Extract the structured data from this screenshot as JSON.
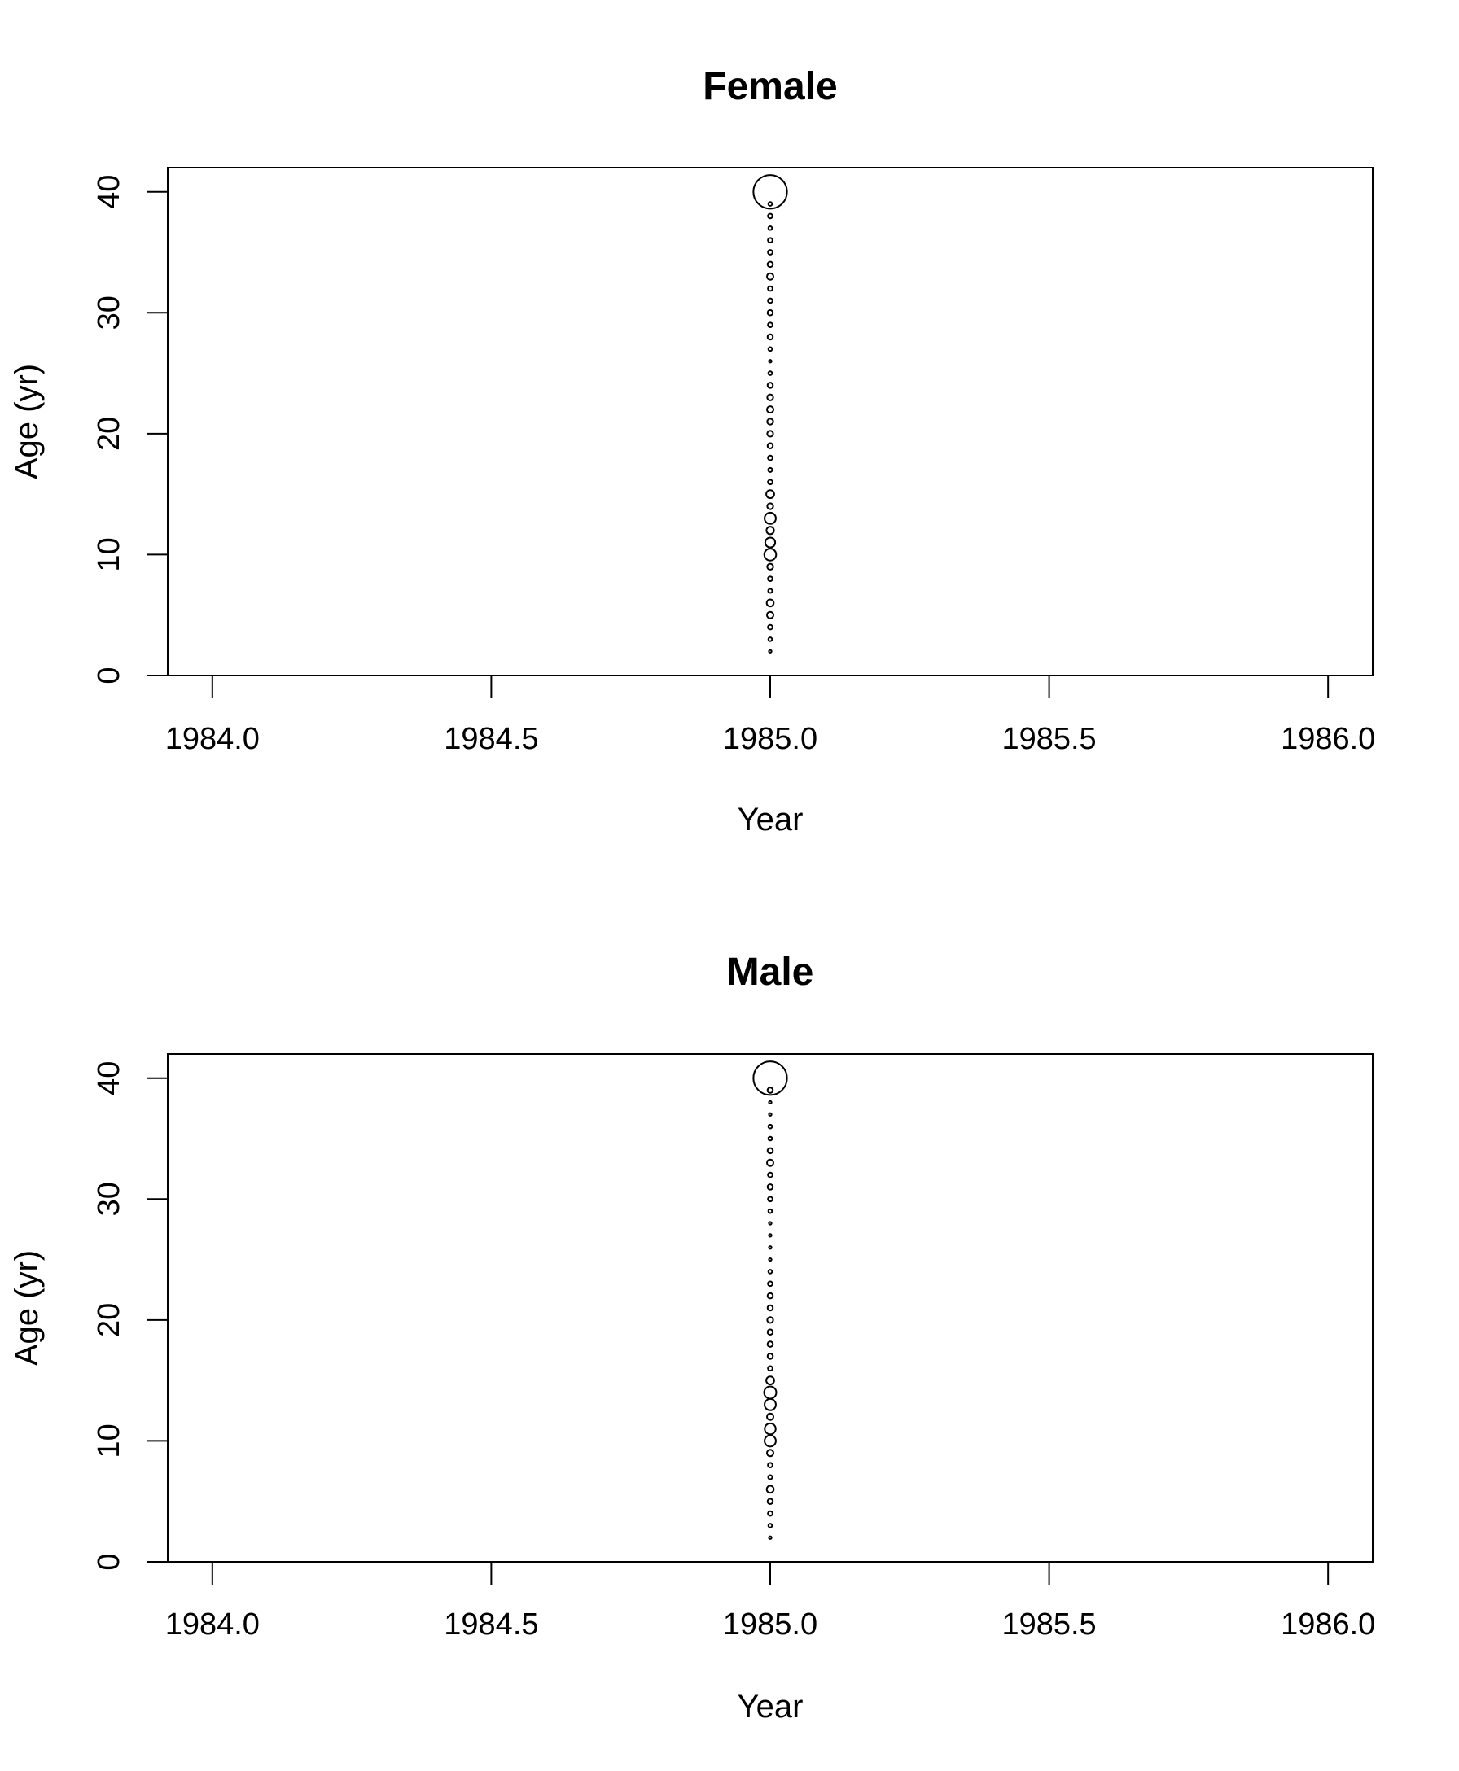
{
  "chart_data": [
    {
      "type": "scatter",
      "title": "Female",
      "xlabel": "Year",
      "ylabel": "Age (yr)",
      "xlim": [
        1983.92,
        1986.08
      ],
      "ylim": [
        0,
        42
      ],
      "xticks": [
        1984.0,
        1984.5,
        1985.0,
        1985.5,
        1986.0
      ],
      "xtick_labels": [
        "1984.0",
        "1984.5",
        "1985.0",
        "1985.5",
        "1986.0"
      ],
      "yticks": [
        0,
        10,
        20,
        30,
        40
      ],
      "ytick_labels": [
        "0",
        "10",
        "20",
        "30",
        "40"
      ],
      "grid": false,
      "series": [
        {
          "x": [
            1985,
            1985,
            1985,
            1985,
            1985,
            1985,
            1985,
            1985,
            1985,
            1985,
            1985,
            1985,
            1985,
            1985,
            1985,
            1985,
            1985,
            1985,
            1985,
            1985,
            1985,
            1985,
            1985,
            1985,
            1985,
            1985,
            1985,
            1985,
            1985,
            1985,
            1985,
            1985,
            1985,
            1985,
            1985,
            1985,
            1985,
            1985,
            1985
          ],
          "y": [
            2,
            3,
            4,
            5,
            6,
            7,
            8,
            9,
            10,
            11,
            12,
            13,
            14,
            15,
            16,
            17,
            18,
            19,
            20,
            21,
            22,
            23,
            24,
            25,
            26,
            27,
            28,
            29,
            30,
            31,
            32,
            33,
            34,
            35,
            36,
            37,
            38,
            39,
            40
          ],
          "size": [
            0.05,
            0.1,
            0.15,
            0.3,
            0.35,
            0.12,
            0.15,
            0.25,
            1.0,
            0.7,
            0.4,
            0.9,
            0.25,
            0.45,
            0.15,
            0.12,
            0.15,
            0.2,
            0.25,
            0.25,
            0.3,
            0.25,
            0.2,
            0.1,
            0.05,
            0.1,
            0.2,
            0.15,
            0.2,
            0.15,
            0.15,
            0.3,
            0.2,
            0.15,
            0.15,
            0.1,
            0.15,
            0.1,
            8.0
          ]
        }
      ]
    },
    {
      "type": "scatter",
      "title": "Male",
      "xlabel": "Year",
      "ylabel": "Age (yr)",
      "xlim": [
        1983.92,
        1986.08
      ],
      "ylim": [
        0,
        42
      ],
      "xticks": [
        1984.0,
        1984.5,
        1985.0,
        1985.5,
        1986.0
      ],
      "xtick_labels": [
        "1984.0",
        "1984.5",
        "1985.0",
        "1985.5",
        "1986.0"
      ],
      "yticks": [
        0,
        10,
        20,
        30,
        40
      ],
      "ytick_labels": [
        "0",
        "10",
        "20",
        "30",
        "40"
      ],
      "grid": false,
      "series": [
        {
          "x": [
            1985,
            1985,
            1985,
            1985,
            1985,
            1985,
            1985,
            1985,
            1985,
            1985,
            1985,
            1985,
            1985,
            1985,
            1985,
            1985,
            1985,
            1985,
            1985,
            1985,
            1985,
            1985,
            1985,
            1985,
            1985,
            1985,
            1985,
            1985,
            1985,
            1985,
            1985,
            1985,
            1985,
            1985,
            1985,
            1985,
            1985,
            1985,
            1985
          ],
          "y": [
            2,
            3,
            4,
            5,
            6,
            7,
            8,
            9,
            10,
            11,
            12,
            13,
            14,
            15,
            16,
            17,
            18,
            19,
            20,
            21,
            22,
            23,
            24,
            25,
            26,
            27,
            28,
            29,
            30,
            31,
            32,
            33,
            34,
            35,
            36,
            37,
            38,
            39,
            40
          ],
          "size": [
            0.05,
            0.1,
            0.15,
            0.2,
            0.35,
            0.12,
            0.15,
            0.3,
            0.9,
            0.85,
            0.3,
            0.9,
            1.05,
            0.45,
            0.15,
            0.2,
            0.2,
            0.2,
            0.25,
            0.2,
            0.2,
            0.15,
            0.1,
            0.05,
            0.05,
            0.05,
            0.05,
            0.1,
            0.15,
            0.2,
            0.15,
            0.3,
            0.2,
            0.1,
            0.1,
            0.05,
            0.05,
            0.2,
            8.0
          ]
        }
      ]
    }
  ]
}
